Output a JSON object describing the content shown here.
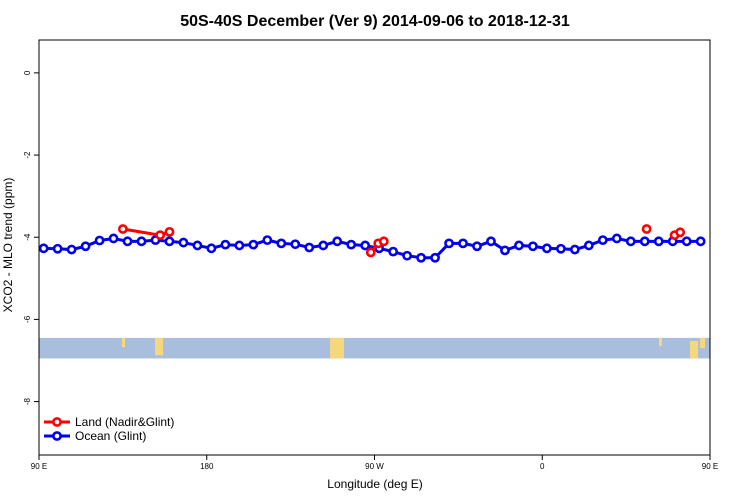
{
  "chart_data": {
    "type": "line",
    "title": "50S-40S December (Ver 9)   2014-09-06 to 2018-12-31",
    "xlabel": "Longitude (deg E)",
    "ylabel": "XCO2 - MLO trend (ppm)",
    "xlim": [
      90,
      450
    ],
    "ylim": [
      -9.3,
      0.8
    ],
    "x_ticks": [
      {
        "value": 90,
        "label": "90 E"
      },
      {
        "value": 180,
        "label": "180"
      },
      {
        "value": 270,
        "label": "90 W"
      },
      {
        "value": 360,
        "label": "0"
      },
      {
        "value": 450,
        "label": "90 E"
      },
      {
        "value": 540,
        "label": "180"
      }
    ],
    "y_ticks": [
      0,
      -2,
      -4,
      -6,
      -8
    ],
    "land_band": {
      "y_top": -6.45,
      "y_bottom": -6.95,
      "color": "#a9bedd",
      "land_color": "#f5d77e"
    },
    "series": [
      {
        "name": "Land (Nadir&Glint)",
        "color": "#ff0000",
        "segments": [
          [
            [
              135,
              -3.8
            ],
            [
              155,
              -3.95
            ],
            [
              160,
              -3.87
            ]
          ],
          [
            [
              268,
              -4.37
            ],
            [
              272,
              -4.15
            ],
            [
              275,
              -4.1
            ]
          ],
          [
            [
              416,
              -3.8
            ]
          ],
          [
            [
              431,
              -3.95
            ],
            [
              434,
              -3.88
            ]
          ]
        ]
      },
      {
        "name": "Ocean (Glint)",
        "color": "#0000ee",
        "segments": [
          [
            [
              92.5,
              -4.27
            ],
            [
              100,
              -4.28
            ],
            [
              107.5,
              -4.3
            ],
            [
              115,
              -4.22
            ],
            [
              122.5,
              -4.08
            ],
            [
              130,
              -4.03
            ],
            [
              137.5,
              -4.1
            ],
            [
              145,
              -4.1
            ],
            [
              152.5,
              -4.07
            ],
            [
              160,
              -4.1
            ],
            [
              167.5,
              -4.13
            ],
            [
              175,
              -4.2
            ],
            [
              182.5,
              -4.27
            ],
            [
              190,
              -4.18
            ],
            [
              197.5,
              -4.2
            ],
            [
              205,
              -4.18
            ],
            [
              212.5,
              -4.07
            ],
            [
              220,
              -4.15
            ],
            [
              227.5,
              -4.17
            ],
            [
              235,
              -4.25
            ],
            [
              242.5,
              -4.2
            ],
            [
              250,
              -4.1
            ],
            [
              257.5,
              -4.18
            ],
            [
              265,
              -4.2
            ],
            [
              272.5,
              -4.27
            ],
            [
              280,
              -4.35
            ],
            [
              287.5,
              -4.45
            ],
            [
              295,
              -4.5
            ],
            [
              302.5,
              -4.5
            ],
            [
              310,
              -4.15
            ],
            [
              317.5,
              -4.15
            ],
            [
              325,
              -4.22
            ],
            [
              332.5,
              -4.1
            ],
            [
              340,
              -4.32
            ],
            [
              347.5,
              -4.2
            ],
            [
              355,
              -4.22
            ],
            [
              362.5,
              -4.27
            ],
            [
              370,
              -4.28
            ],
            [
              377.5,
              -4.3
            ],
            [
              385,
              -4.2
            ],
            [
              392.5,
              -4.07
            ],
            [
              400,
              -4.03
            ],
            [
              407.5,
              -4.1
            ],
            [
              415,
              -4.1
            ],
            [
              422.5,
              -4.1
            ],
            [
              430,
              -4.1
            ],
            [
              437.5,
              -4.1
            ],
            [
              445,
              -4.1
            ]
          ]
        ]
      }
    ],
    "legend": {
      "position": "bottom-left"
    }
  }
}
